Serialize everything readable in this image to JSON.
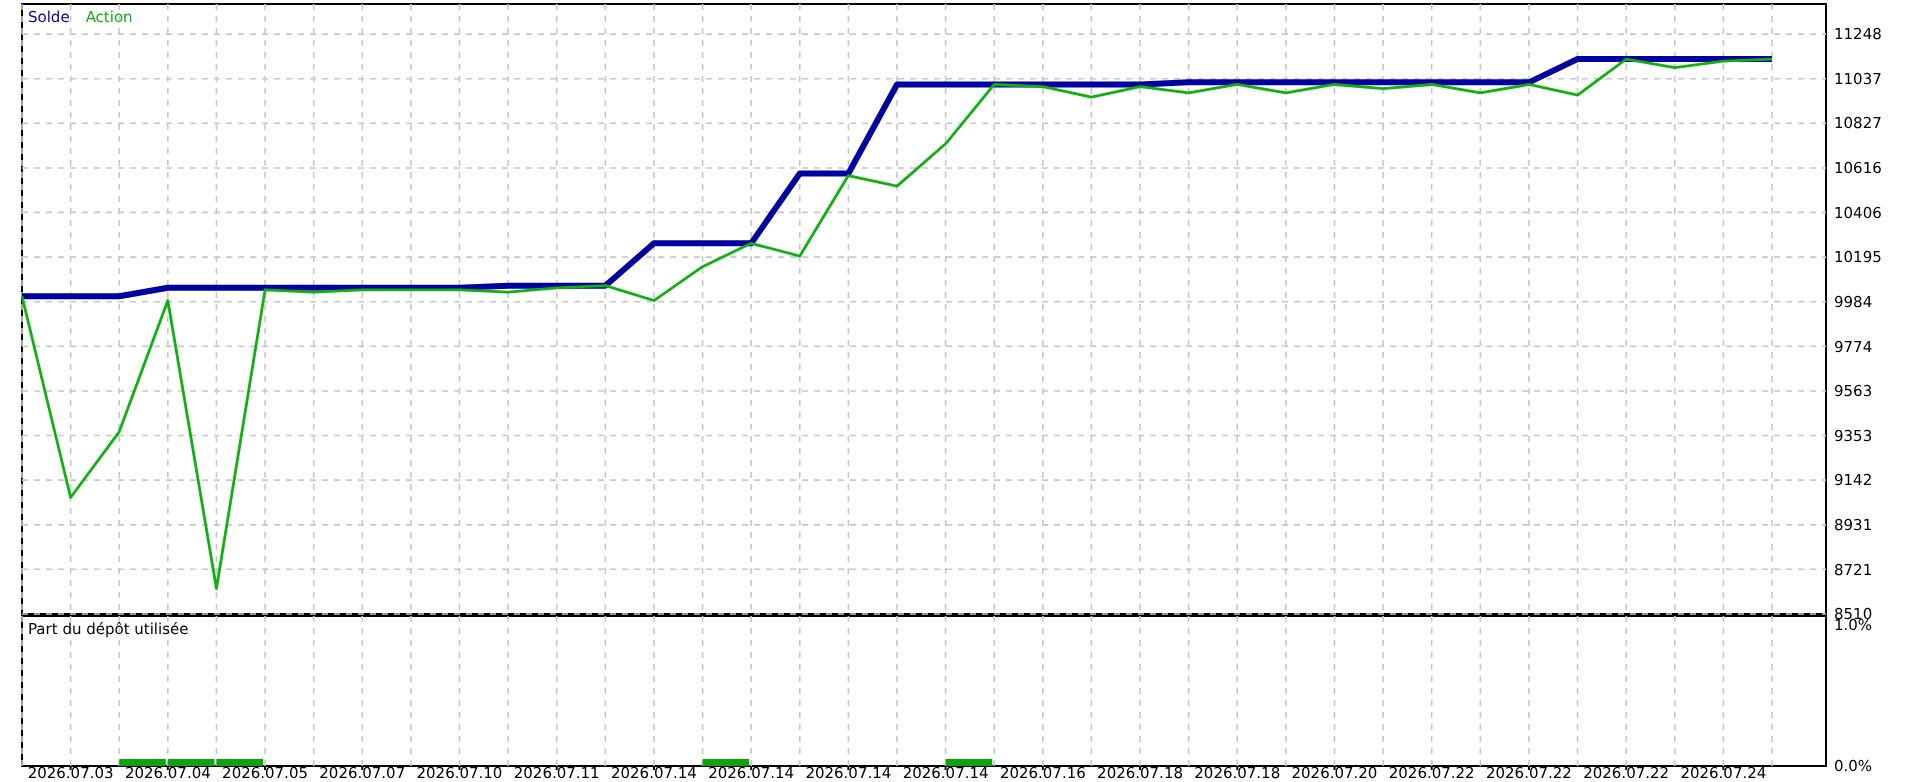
{
  "chart_data": [
    {
      "type": "line",
      "categories": [
        null,
        "2026.07.03",
        null,
        "2026.07.04",
        null,
        "2026.07.05",
        null,
        "2026.07.07",
        null,
        "2026.07.10",
        null,
        "2026.07.11",
        null,
        "2026.07.14",
        null,
        "2026.07.14",
        null,
        "2026.07.14",
        null,
        "2026.07.14",
        null,
        "2026.07.16",
        null,
        "2026.07.18",
        null,
        "2026.07.18",
        null,
        "2026.07.20",
        null,
        "2026.07.22",
        null,
        "2026.07.22",
        null,
        "2026.07.22",
        null,
        "2026.07.24",
        null
      ],
      "tick_labels": "y",
      "series": [
        {
          "name": "Solde",
          "color": "#0000a0",
          "values": [
            10010,
            10010,
            10010,
            10050,
            10050,
            10050,
            10050,
            10050,
            10050,
            10050,
            10060,
            10060,
            10060,
            10260,
            10260,
            10260,
            10590,
            10590,
            11010,
            11010,
            11010,
            11010,
            11010,
            11010,
            11020,
            11020,
            11020,
            11020,
            11020,
            11020,
            11020,
            11020,
            11130,
            11130,
            11130,
            11130,
            11130
          ]
        },
        {
          "name": "Action",
          "color": "#10b010",
          "values": [
            10010,
            9060,
            9370,
            9990,
            8630,
            10040,
            10030,
            10040,
            10040,
            10040,
            10030,
            10050,
            10060,
            9990,
            10150,
            10260,
            10200,
            10580,
            10530,
            10730,
            11010,
            11000,
            10950,
            11000,
            10970,
            11010,
            10970,
            11010,
            10990,
            11010,
            10970,
            11010,
            10960,
            11130,
            11090,
            11120,
            11130
          ]
        }
      ],
      "ylim": [
        8510,
        11390
      ],
      "yticks": [
        8510,
        8721,
        8931,
        9142,
        9353,
        9563,
        9774,
        9984,
        10195,
        10406,
        10616,
        10827,
        11037,
        11248
      ],
      "grid": true,
      "legend": "top left"
    },
    {
      "type": "bar",
      "title": "Part du dépôt utilisée",
      "categories": [
        null,
        "2026.07.03",
        null,
        "2026.07.04",
        null,
        "2026.07.05",
        null,
        "2026.07.07",
        null,
        "2026.07.10",
        null,
        "2026.07.11",
        null,
        "2026.07.14",
        null,
        "2026.07.14",
        null,
        "2026.07.14",
        null,
        "2026.07.14",
        null,
        "2026.07.16",
        null,
        "2026.07.18",
        null,
        "2026.07.18",
        null,
        "2026.07.20",
        null,
        "2026.07.22",
        null,
        "2026.07.22",
        null,
        "2026.07.22",
        null,
        "2026.07.24",
        null
      ],
      "values": [
        null,
        null,
        0.05,
        0.05,
        0.05,
        null,
        null,
        null,
        null,
        null,
        null,
        null,
        null,
        null,
        0.05,
        null,
        null,
        null,
        null,
        0.05,
        null,
        null,
        null,
        null,
        null,
        null,
        null,
        null,
        null,
        null,
        null,
        null,
        null,
        null,
        null,
        null,
        null
      ],
      "color": "#10a010",
      "ylim": [
        0,
        1.06
      ],
      "yticks": [
        {
          "value": 1,
          "label": "1.0%"
        },
        {
          "value": 0,
          "label": "0.0%"
        }
      ],
      "grid": "x"
    }
  ]
}
